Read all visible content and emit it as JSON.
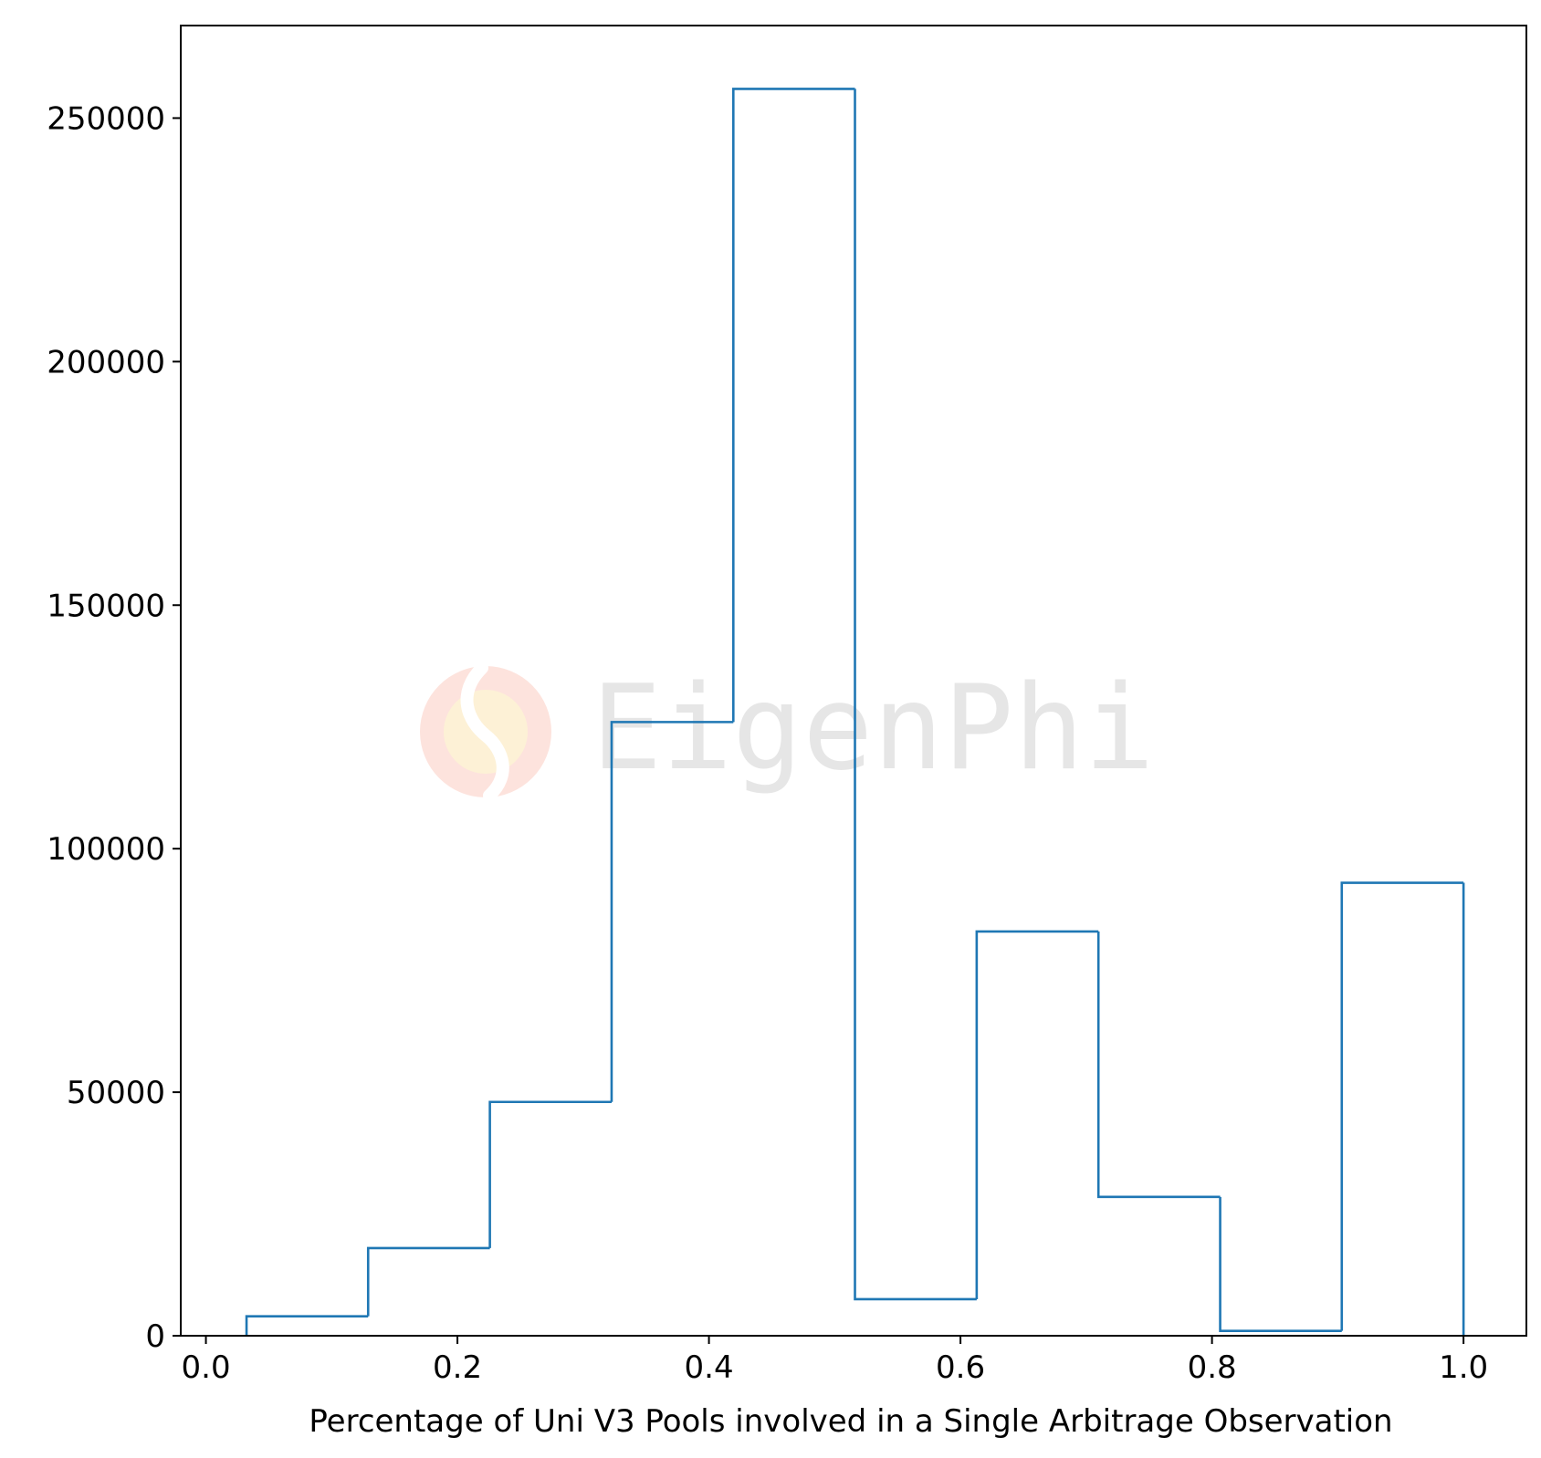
{
  "chart_data": {
    "type": "bar",
    "style": "step-histogram",
    "xlabel": "Percentage of Uni V3 Pools involved in a Single Arbitrage Observation",
    "ylabel": "",
    "title": "",
    "xlim": [
      -0.02,
      1.05
    ],
    "ylim": [
      0,
      269000
    ],
    "x_ticks": [
      0.0,
      0.2,
      0.4,
      0.6,
      0.8,
      1.0
    ],
    "x_tick_labels": [
      "0.0",
      "0.2",
      "0.4",
      "0.6",
      "0.8",
      "1.0"
    ],
    "y_ticks": [
      0,
      50000,
      100000,
      150000,
      200000,
      250000
    ],
    "y_tick_labels": [
      "0",
      "50000",
      "100000",
      "150000",
      "200000",
      "250000"
    ],
    "bin_edges": [
      0.0323,
      0.129,
      0.2258,
      0.3226,
      0.4194,
      0.5161,
      0.6129,
      0.7097,
      0.8065,
      0.9032,
      1.0
    ],
    "counts": [
      4000,
      18000,
      48000,
      126000,
      256000,
      7500,
      83000,
      28500,
      1000,
      93000
    ],
    "grid": false,
    "legend": "none",
    "colors": {
      "line": "#1f77b4",
      "axes": "#000000"
    }
  },
  "watermark": {
    "text": "EigenPhi",
    "logo": "eigenphi-logo-icon",
    "colors": {
      "logo_outer": "#fde3dd",
      "logo_inner": "#fdf1d6",
      "text": "#e6e6e6"
    }
  }
}
